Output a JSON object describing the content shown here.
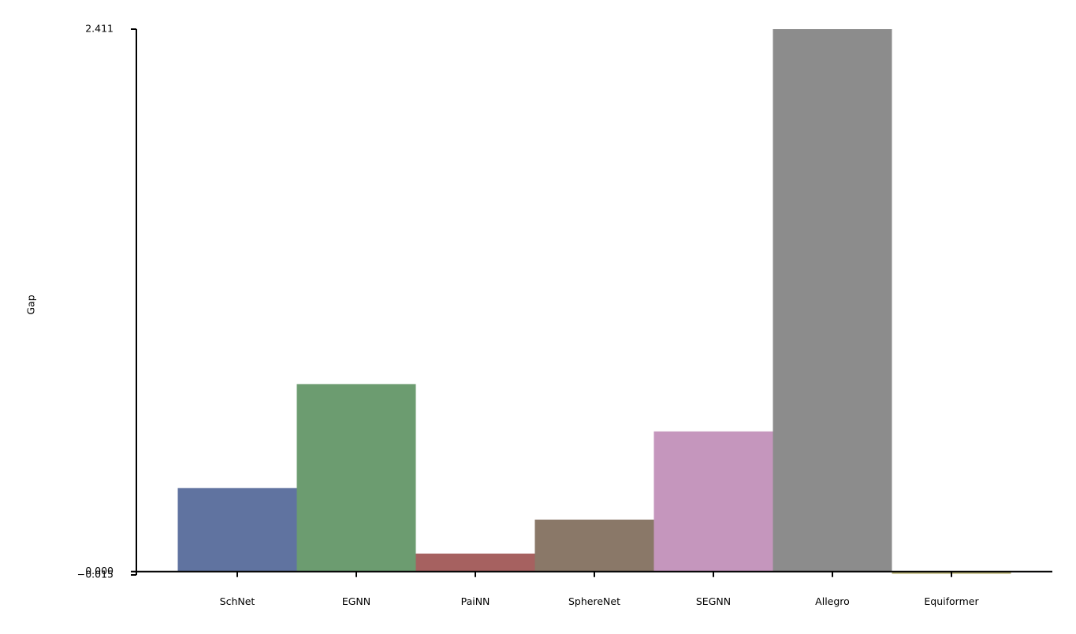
{
  "chart_data": {
    "type": "bar",
    "ylabel": "Gap",
    "categories": [
      "SchNet",
      "EGNN",
      "PaiNN",
      "SphereNet",
      "SEGNN",
      "Allegro",
      "Equiformer"
    ],
    "values": [
      0.371,
      0.833,
      0.08,
      0.231,
      0.623,
      2.411,
      -0.01
    ],
    "colors": [
      "#6073a0",
      "#6c9c70",
      "#a66160",
      "#8a7868",
      "#c596bd",
      "#8c8c8c",
      "#b5ae6e"
    ],
    "ylim": [
      -0.015,
      2.411
    ],
    "yticks": [
      {
        "value": -0.015,
        "label": "−0.015"
      },
      {
        "value": 0,
        "label": "0.000"
      },
      2.411
    ],
    "grid": false
  }
}
